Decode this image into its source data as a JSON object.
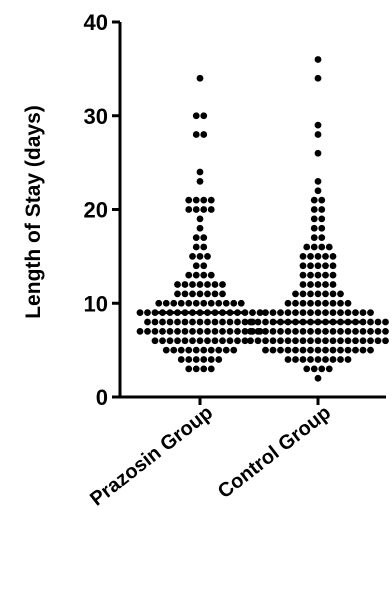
{
  "chart_data": {
    "type": "scatter",
    "subtype": "dot-plot",
    "title": "",
    "ylabel": "Length of Stay (days)",
    "xlabel": "",
    "ylim": [
      0,
      40
    ],
    "yticks": [
      0,
      10,
      20,
      30,
      40
    ],
    "categories": [
      "Prazosin Group",
      "Control Group"
    ],
    "series": [
      {
        "category": "Prazosin Group",
        "median": 9,
        "counts": [
          {
            "y": 3,
            "n": 4
          },
          {
            "y": 4,
            "n": 6
          },
          {
            "y": 5,
            "n": 10
          },
          {
            "y": 6,
            "n": 13
          },
          {
            "y": 7,
            "n": 17
          },
          {
            "y": 8,
            "n": 15
          },
          {
            "y": 9,
            "n": 17
          },
          {
            "y": 10,
            "n": 12
          },
          {
            "y": 11,
            "n": 7
          },
          {
            "y": 12,
            "n": 7
          },
          {
            "y": 13,
            "n": 4
          },
          {
            "y": 14,
            "n": 2
          },
          {
            "y": 15,
            "n": 3
          },
          {
            "y": 16,
            "n": 2
          },
          {
            "y": 17,
            "n": 2
          },
          {
            "y": 18,
            "n": 1
          },
          {
            "y": 19,
            "n": 1
          },
          {
            "y": 20,
            "n": 4
          },
          {
            "y": 21,
            "n": 4
          },
          {
            "y": 23,
            "n": 1
          },
          {
            "y": 24,
            "n": 1
          },
          {
            "y": 28,
            "n": 2
          },
          {
            "y": 30,
            "n": 2
          },
          {
            "y": 34,
            "n": 1
          }
        ]
      },
      {
        "category": "Control Group",
        "median": 8,
        "counts": [
          {
            "y": 2,
            "n": 1
          },
          {
            "y": 3,
            "n": 4
          },
          {
            "y": 4,
            "n": 9
          },
          {
            "y": 5,
            "n": 15
          },
          {
            "y": 6,
            "n": 19
          },
          {
            "y": 7,
            "n": 19
          },
          {
            "y": 8,
            "n": 19
          },
          {
            "y": 9,
            "n": 15
          },
          {
            "y": 10,
            "n": 9
          },
          {
            "y": 11,
            "n": 7
          },
          {
            "y": 12,
            "n": 5
          },
          {
            "y": 13,
            "n": 5
          },
          {
            "y": 14,
            "n": 5
          },
          {
            "y": 15,
            "n": 5
          },
          {
            "y": 16,
            "n": 4
          },
          {
            "y": 17,
            "n": 2
          },
          {
            "y": 18,
            "n": 2
          },
          {
            "y": 19,
            "n": 2
          },
          {
            "y": 20,
            "n": 2
          },
          {
            "y": 21,
            "n": 2
          },
          {
            "y": 22,
            "n": 1
          },
          {
            "y": 23,
            "n": 1
          },
          {
            "y": 26,
            "n": 1
          },
          {
            "y": 28,
            "n": 1
          },
          {
            "y": 29,
            "n": 1
          },
          {
            "y": 34,
            "n": 1
          },
          {
            "y": 36,
            "n": 1
          }
        ]
      }
    ],
    "grid": false,
    "legend": "none",
    "colors": {
      "points": "#000000",
      "axis": "#000000"
    }
  }
}
